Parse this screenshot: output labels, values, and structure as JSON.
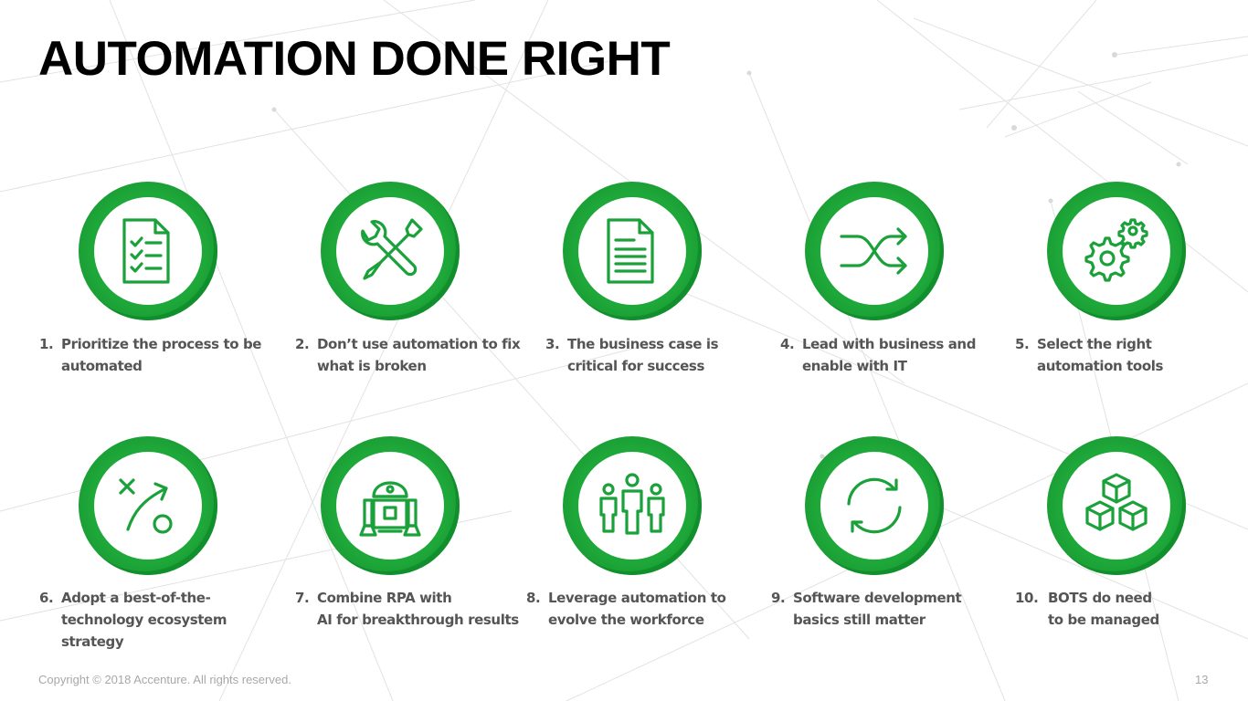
{
  "slide": {
    "title": "AUTOMATION DONE RIGHT",
    "copyright": "Copyright © 2018 Accenture. All rights reserved.",
    "page_number": "13"
  },
  "colors": {
    "accent_green": "#1fa83a",
    "caption_gray": "#555555",
    "footer_gray": "#a8a8a8"
  },
  "items": [
    {
      "num": "1.",
      "text": "Prioritize the process to be\nautomated",
      "icon": "checklist-icon"
    },
    {
      "num": "2.",
      "text": "Don’t use automation to fix\nwhat is broken",
      "icon": "tools-icon"
    },
    {
      "num": "3.",
      "text": "The business case is\ncritical for success",
      "icon": "document-icon"
    },
    {
      "num": "4.",
      "text": "Lead with business and\nenable with IT",
      "icon": "shuffle-icon"
    },
    {
      "num": "5.",
      "text": "Select the right\nautomation tools",
      "icon": "gears-icon"
    },
    {
      "num": "6.",
      "text": "Adopt a best-of-the-\ntechnology ecosystem\nstrategy",
      "icon": "strategy-icon"
    },
    {
      "num": "7.",
      "text": "Combine RPA with\nAI for breakthrough results",
      "icon": "robot-icon"
    },
    {
      "num": "8.",
      "text": "Leverage automation to\nevolve the workforce",
      "icon": "workforce-icon"
    },
    {
      "num": "9.",
      "text": "Software development\nbasics still matter",
      "icon": "refresh-icon"
    },
    {
      "num": "10.",
      "text": "BOTS do need\nto be managed",
      "icon": "cubes-icon"
    }
  ]
}
